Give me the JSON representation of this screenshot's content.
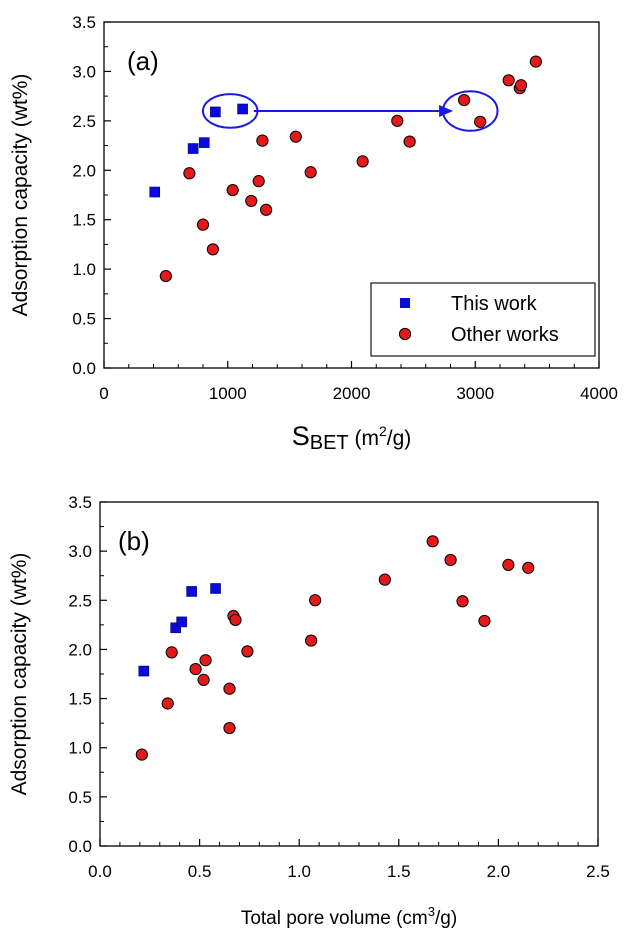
{
  "chart_data": [
    {
      "type": "scatter",
      "panel_label": "(a)",
      "xlabel_main": "S",
      "xlabel_sub": "BET",
      "xlabel_unit_pre": " (m",
      "xlabel_unit_sup": "2",
      "xlabel_unit_post": "/g)",
      "ylabel": "Adsorption capacity (wt%)",
      "xlim": [
        0,
        4000
      ],
      "ylim": [
        0.0,
        3.5
      ],
      "x_ticks": [
        "0",
        "1000",
        "2000",
        "3000",
        "4000"
      ],
      "y_ticks": [
        "0.0",
        "0.5",
        "1.0",
        "1.5",
        "2.0",
        "2.5",
        "3.0",
        "3.5"
      ],
      "legend_position": "bottom-right",
      "series": [
        {
          "name": "This work",
          "marker": "square",
          "color": "#0a0adc",
          "points": [
            [
              410,
              1.78
            ],
            [
              720,
              2.22
            ],
            [
              810,
              2.28
            ],
            [
              900,
              2.59
            ],
            [
              1120,
              2.62
            ]
          ]
        },
        {
          "name": "Other works",
          "marker": "circle",
          "color": "#e41a1a",
          "points": [
            [
              500,
              0.93
            ],
            [
              690,
              1.97
            ],
            [
              800,
              1.45
            ],
            [
              880,
              1.2
            ],
            [
              1040,
              1.8
            ],
            [
              1190,
              1.69
            ],
            [
              1250,
              1.89
            ],
            [
              1280,
              2.3
            ],
            [
              1310,
              1.6
            ],
            [
              1550,
              2.34
            ],
            [
              1670,
              1.98
            ],
            [
              2090,
              2.09
            ],
            [
              2370,
              2.5
            ],
            [
              2470,
              2.29
            ],
            [
              2910,
              2.71
            ],
            [
              3040,
              2.49
            ],
            [
              3270,
              2.91
            ],
            [
              3360,
              2.83
            ],
            [
              3370,
              2.86
            ],
            [
              3490,
              3.1
            ]
          ]
        }
      ],
      "annotation": {
        "color": "#1a1ae6",
        "ellipse_from": {
          "cx": 1020,
          "cy": 2.6,
          "rx": 220,
          "ry": 0.17
        },
        "ellipse_to": {
          "cx": 2960,
          "cy": 2.6,
          "rx": 220,
          "ry": 0.2
        },
        "arrow": {
          "x1": 1210,
          "x2": 2740,
          "y": 2.6
        }
      }
    },
    {
      "type": "scatter",
      "panel_label": "(b)",
      "xlabel_main": "Total pore volume (cm",
      "xlabel_sup": "3",
      "xlabel_post": "/g)",
      "ylabel": "Adsorption capacity (wt%)",
      "xlim": [
        0.0,
        2.5
      ],
      "ylim": [
        0.0,
        3.5
      ],
      "x_ticks": [
        "0.0",
        "0.5",
        "1.0",
        "1.5",
        "2.0",
        "2.5"
      ],
      "y_ticks": [
        "0.0",
        "0.5",
        "1.0",
        "1.5",
        "2.0",
        "2.5",
        "3.0",
        "3.5"
      ],
      "series": [
        {
          "name": "This work",
          "marker": "square",
          "color": "#0a0adc",
          "points": [
            [
              0.22,
              1.78
            ],
            [
              0.38,
              2.22
            ],
            [
              0.41,
              2.28
            ],
            [
              0.46,
              2.59
            ],
            [
              0.58,
              2.62
            ]
          ]
        },
        {
          "name": "Other works",
          "marker": "circle",
          "color": "#e41a1a",
          "points": [
            [
              0.21,
              0.93
            ],
            [
              0.34,
              1.45
            ],
            [
              0.36,
              1.97
            ],
            [
              0.48,
              1.8
            ],
            [
              0.52,
              1.69
            ],
            [
              0.53,
              1.89
            ],
            [
              0.65,
              1.6
            ],
            [
              0.65,
              1.2
            ],
            [
              0.67,
              2.34
            ],
            [
              0.68,
              2.3
            ],
            [
              0.74,
              1.98
            ],
            [
              1.06,
              2.09
            ],
            [
              1.08,
              2.5
            ],
            [
              1.43,
              2.71
            ],
            [
              1.67,
              3.1
            ],
            [
              1.76,
              2.91
            ],
            [
              1.82,
              2.49
            ],
            [
              1.93,
              2.29
            ],
            [
              2.05,
              2.86
            ],
            [
              2.15,
              2.83
            ]
          ]
        }
      ]
    }
  ]
}
